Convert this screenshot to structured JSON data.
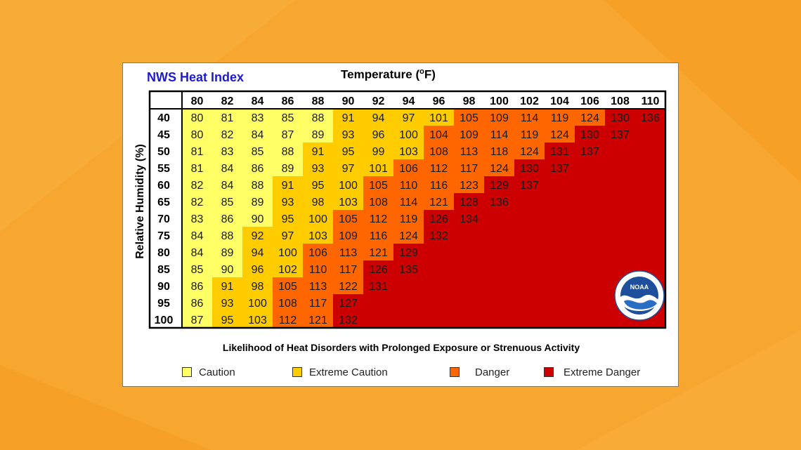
{
  "colors": {
    "background": "#f7a62f",
    "caution": "#ffff66",
    "extreme_caution": "#ffcc00",
    "danger": "#ff6600",
    "extreme_danger": "#cc0000",
    "title_blue": "#1c1ccc"
  },
  "icons": {
    "logo": "noaa-logo-icon"
  },
  "logo": {
    "text": "NOAA"
  },
  "chart_data": {
    "type": "table",
    "title": "NWS Heat Index",
    "xlabel": "Temperature (°F)",
    "xlabel_main": "Temperature (",
    "xlabel_sup": "o",
    "xlabel_tail": "F)",
    "ylabel": "Relative Humidity (%)",
    "subtitle": "Likelihood of Heat Disorders with Prolonged Exposure or Strenuous Activity",
    "temperatures": [
      80,
      82,
      84,
      86,
      88,
      90,
      92,
      94,
      96,
      98,
      100,
      102,
      104,
      106,
      108,
      110
    ],
    "humidities": [
      40,
      45,
      50,
      55,
      60,
      65,
      70,
      75,
      80,
      85,
      90,
      95,
      100
    ],
    "values": [
      [
        80,
        81,
        83,
        85,
        88,
        91,
        94,
        97,
        101,
        105,
        109,
        114,
        119,
        124,
        130,
        136
      ],
      [
        80,
        82,
        84,
        87,
        89,
        93,
        96,
        100,
        104,
        109,
        114,
        119,
        124,
        130,
        137
      ],
      [
        81,
        83,
        85,
        88,
        91,
        95,
        99,
        103,
        108,
        113,
        118,
        124,
        131,
        137
      ],
      [
        81,
        84,
        86,
        89,
        93,
        97,
        101,
        106,
        112,
        117,
        124,
        130,
        137
      ],
      [
        82,
        84,
        88,
        91,
        95,
        100,
        105,
        110,
        116,
        123,
        129,
        137
      ],
      [
        82,
        85,
        89,
        93,
        98,
        103,
        108,
        114,
        121,
        128,
        136
      ],
      [
        83,
        86,
        90,
        95,
        100,
        105,
        112,
        119,
        126,
        134
      ],
      [
        84,
        88,
        92,
        97,
        103,
        109,
        116,
        124,
        132
      ],
      [
        84,
        89,
        94,
        100,
        106,
        113,
        121,
        129
      ],
      [
        85,
        90,
        96,
        102,
        110,
        117,
        126,
        135
      ],
      [
        86,
        91,
        98,
        105,
        113,
        122,
        131
      ],
      [
        86,
        93,
        100,
        108,
        117,
        127
      ],
      [
        87,
        95,
        103,
        112,
        121,
        132
      ]
    ],
    "legend": [
      {
        "label": "Caution",
        "color": "#ffff66"
      },
      {
        "label": "Extreme Caution",
        "color": "#ffcc00"
      },
      {
        "label": "Danger",
        "color": "#ff6600"
      },
      {
        "label": "Extreme Danger",
        "color": "#cc0000"
      }
    ]
  }
}
